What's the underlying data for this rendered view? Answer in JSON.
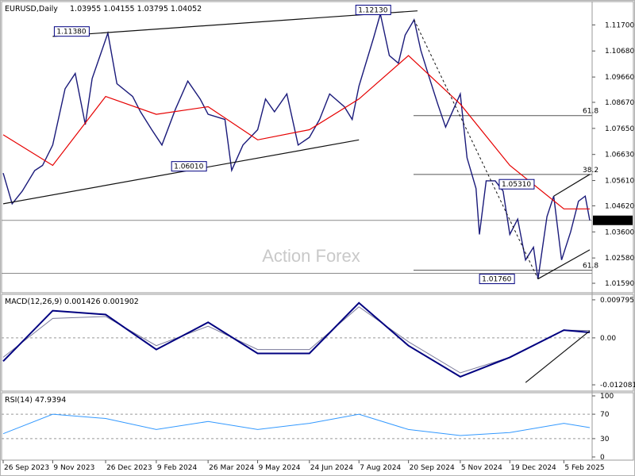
{
  "chart_data": [
    {
      "type": "line",
      "panel": "price",
      "title": "EURUSD,Daily",
      "ohlc_label": "1.03955 1.04155 1.03795 1.04052",
      "watermark": "Action Forex",
      "last_price": 1.04052,
      "ylim": [
        1.0125,
        1.1255
      ],
      "y_ticks": [
        "1.11700",
        "1.10680",
        "1.09660",
        "1.08670",
        "1.07650",
        "1.06630",
        "1.05610",
        "1.04620",
        "1.03600",
        "1.02580",
        "1.01590"
      ],
      "x_ticks": [
        "26 Sep 2023",
        "9 Nov 2023",
        "26 Dec 2023",
        "9 Feb 2024",
        "26 Mar 2024",
        "9 May 2024",
        "24 Jun 2024",
        "7 Aug 2024",
        "20 Sep 2024",
        "5 Nov 2024",
        "19 Dec 2024",
        "5 Feb 2025"
      ],
      "series": [
        {
          "name": "",
          "role": "price",
          "color": "#1a1a7a",
          "values": [
            [
              "26 Sep 2023",
              1.059
            ],
            [
              "4 Oct 2023",
              1.047
            ],
            [
              "13 Oct 2023",
              1.052
            ],
            [
              "24 Oct 2023",
              1.06
            ],
            [
              "31 Oct 2023",
              1.062
            ],
            [
              "9 Nov 2023",
              1.07
            ],
            [
              "20 Nov 2023",
              1.092
            ],
            [
              "29 Nov 2023",
              1.098
            ],
            [
              "8 Dec 2023",
              1.078
            ],
            [
              "14 Dec 2023",
              1.096
            ],
            [
              "28 Dec 2023",
              1.1138
            ],
            [
              "5 Jan 2024",
              1.094
            ],
            [
              "19 Jan 2024",
              1.089
            ],
            [
              "26 Jan 2024",
              1.083
            ],
            [
              "5 Feb 2024",
              1.076
            ],
            [
              "14 Feb 2024",
              1.07
            ],
            [
              "26 Feb 2024",
              1.084
            ],
            [
              "8 Mar 2024",
              1.095
            ],
            [
              "19 Mar 2024",
              1.088
            ],
            [
              "26 Mar 2024",
              1.082
            ],
            [
              "10 Apr 2024",
              1.08
            ],
            [
              "16 Apr 2024",
              1.0601
            ],
            [
              "26 Apr 2024",
              1.07
            ],
            [
              "9 May 2024",
              1.076
            ],
            [
              "16 May 2024",
              1.088
            ],
            [
              "24 May 2024",
              1.083
            ],
            [
              "4 Jun 2024",
              1.09
            ],
            [
              "14 Jun 2024",
              1.07
            ],
            [
              "24 Jun 2024",
              1.073
            ],
            [
              "3 Jul 2024",
              1.08
            ],
            [
              "12 Jul 2024",
              1.09
            ],
            [
              "25 Jul 2024",
              1.085
            ],
            [
              "1 Aug 2024",
              1.08
            ],
            [
              "7 Aug 2024",
              1.093
            ],
            [
              "20 Aug 2024",
              1.112
            ],
            [
              "26 Aug 2024",
              1.1213
            ],
            [
              "3 Sep 2024",
              1.105
            ],
            [
              "11 Sep 2024",
              1.102
            ],
            [
              "17 Sep 2024",
              1.113
            ],
            [
              "25 Sep 2024",
              1.119
            ],
            [
              "1 Oct 2024",
              1.107
            ],
            [
              "8 Oct 2024",
              1.097
            ],
            [
              "16 Oct 2024",
              1.086
            ],
            [
              "23 Oct 2024",
              1.077
            ],
            [
              "1 Nov 2024",
              1.086
            ],
            [
              "5 Nov 2024",
              1.09
            ],
            [
              "11 Nov 2024",
              1.065
            ],
            [
              "19 Nov 2024",
              1.053
            ],
            [
              "22 Nov 2024",
              1.035
            ],
            [
              "28 Nov 2024",
              1.056
            ],
            [
              "6 Dec 2024",
              1.056
            ],
            [
              "13 Dec 2024",
              1.052
            ],
            [
              "19 Dec 2024",
              1.035
            ],
            [
              "26 Dec 2024",
              1.041
            ],
            [
              "2 Jan 2025",
              1.025
            ],
            [
              "9 Jan 2025",
              1.03
            ],
            [
              "13 Jan 2025",
              1.0176
            ],
            [
              "21 Jan 2025",
              1.042
            ],
            [
              "27 Jan 2025",
              1.05
            ],
            [
              "3 Feb 2025",
              1.025
            ],
            [
              "11 Feb 2025",
              1.036
            ],
            [
              "18 Feb 2025",
              1.048
            ],
            [
              "24 Feb 2025",
              1.05
            ],
            [
              "28 Feb 2025",
              1.0405
            ]
          ]
        },
        {
          "name": "",
          "role": "moving-average",
          "color": "#e60000",
          "values": [
            [
              "26 Sep 2023",
              1.074
            ],
            [
              "9 Nov 2023",
              1.062
            ],
            [
              "26 Dec 2023",
              1.089
            ],
            [
              "9 Feb 2024",
              1.082
            ],
            [
              "26 Mar 2024",
              1.085
            ],
            [
              "9 May 2024",
              1.072
            ],
            [
              "24 Jun 2024",
              1.076
            ],
            [
              "7 Aug 2024",
              1.088
            ],
            [
              "20 Sep 2024",
              1.105
            ],
            [
              "5 Nov 2024",
              1.086
            ],
            [
              "19 Dec 2024",
              1.062
            ],
            [
              "5 Feb 2025",
              1.045
            ],
            [
              "28 Feb 2025",
              1.045
            ]
          ]
        }
      ],
      "trendlines": [
        {
          "from": [
            "26 Sep 2023",
            1.047
          ],
          "to": [
            "7 Aug 2024",
            1.072
          ]
        },
        {
          "from": [
            "9 Nov 2023",
            1.1125
          ],
          "to": [
            "28 Sep 2024",
            1.1225
          ]
        },
        {
          "from": [
            "25 Sep 2024",
            1.119
          ],
          "to": [
            "13 Jan 2025",
            1.0176
          ],
          "style": "dashed"
        },
        {
          "from": [
            "13 Jan 2025",
            1.0176
          ],
          "to": [
            "28 Feb 2025",
            1.029
          ]
        },
        {
          "from": [
            "27 Jan 2025",
            1.05
          ],
          "to": [
            "28 Feb 2025",
            1.0585
          ]
        }
      ],
      "fib_levels": [
        {
          "label": "61.8",
          "price": 1.0815
        },
        {
          "label": "38.2",
          "price": 1.0585
        },
        {
          "label": "61.8",
          "price": 1.021
        }
      ],
      "level_lines": [
        1.0405,
        1.0198
      ],
      "annotations": [
        {
          "label": "1.11380",
          "price": 1.1138
        },
        {
          "label": "1.12130",
          "price": 1.1213
        },
        {
          "label": "1.06010",
          "price": 1.0601
        },
        {
          "label": "1.05310",
          "price": 1.0531
        },
        {
          "label": "1.01760",
          "price": 1.0176
        }
      ]
    },
    {
      "type": "line",
      "panel": "macd",
      "title": "MACD(12,26,9) 0.001426 0.001902",
      "ylim": [
        -0.0135,
        0.0108
      ],
      "y_ticks": [
        "0.009795",
        "0.00",
        "-0.012081"
      ],
      "series": [
        {
          "name": "",
          "role": "macd",
          "color": "#000080",
          "values": [
            [
              "26 Sep 2023",
              -0.006
            ],
            [
              "9 Nov 2023",
              0.007
            ],
            [
              "26 Dec 2023",
              0.006
            ],
            [
              "9 Feb 2024",
              -0.003
            ],
            [
              "26 Mar 2024",
              0.004
            ],
            [
              "9 May 2024",
              -0.004
            ],
            [
              "24 Jun 2024",
              -0.004
            ],
            [
              "7 Aug 2024",
              0.009
            ],
            [
              "20 Sep 2024",
              -0.002
            ],
            [
              "5 Nov 2024",
              -0.01
            ],
            [
              "19 Dec 2024",
              -0.005
            ],
            [
              "5 Feb 2025",
              0.002
            ],
            [
              "28 Feb 2025",
              0.0014
            ]
          ]
        },
        {
          "name": "",
          "role": "signal",
          "color": "#7a7a9a",
          "values": [
            [
              "26 Sep 2023",
              -0.005
            ],
            [
              "9 Nov 2023",
              0.005
            ],
            [
              "26 Dec 2023",
              0.0055
            ],
            [
              "9 Feb 2024",
              -0.002
            ],
            [
              "26 Mar 2024",
              0.003
            ],
            [
              "9 May 2024",
              -0.003
            ],
            [
              "24 Jun 2024",
              -0.003
            ],
            [
              "7 Aug 2024",
              0.008
            ],
            [
              "20 Sep 2024",
              -0.001
            ],
            [
              "5 Nov 2024",
              -0.009
            ],
            [
              "19 Dec 2024",
              -0.005
            ],
            [
              "5 Feb 2025",
              0.002
            ],
            [
              "28 Feb 2025",
              0.0019
            ]
          ]
        }
      ],
      "trendlines": [
        {
          "from": [
            "2 Jan 2025",
            -0.0115
          ],
          "to": [
            "28 Feb 2025",
            0.0018
          ]
        }
      ]
    },
    {
      "type": "line",
      "panel": "rsi",
      "title": "RSI(14) 47.9394",
      "ylim": [
        0,
        100
      ],
      "y_ticks": [
        100,
        70,
        30,
        0
      ],
      "series": [
        {
          "name": "",
          "role": "rsi",
          "color": "#3399ff",
          "values": [
            [
              "26 Sep 2023",
              38
            ],
            [
              "9 Nov 2023",
              70
            ],
            [
              "26 Dec 2023",
              63
            ],
            [
              "9 Feb 2024",
              45
            ],
            [
              "26 Mar 2024",
              58
            ],
            [
              "9 May 2024",
              45
            ],
            [
              "24 Jun 2024",
              55
            ],
            [
              "7 Aug 2024",
              70
            ],
            [
              "20 Sep 2024",
              45
            ],
            [
              "5 Nov 2024",
              35
            ],
            [
              "19 Dec 2024",
              40
            ],
            [
              "5 Feb 2025",
              55
            ],
            [
              "28 Feb 2025",
              48
            ]
          ]
        }
      ]
    }
  ]
}
